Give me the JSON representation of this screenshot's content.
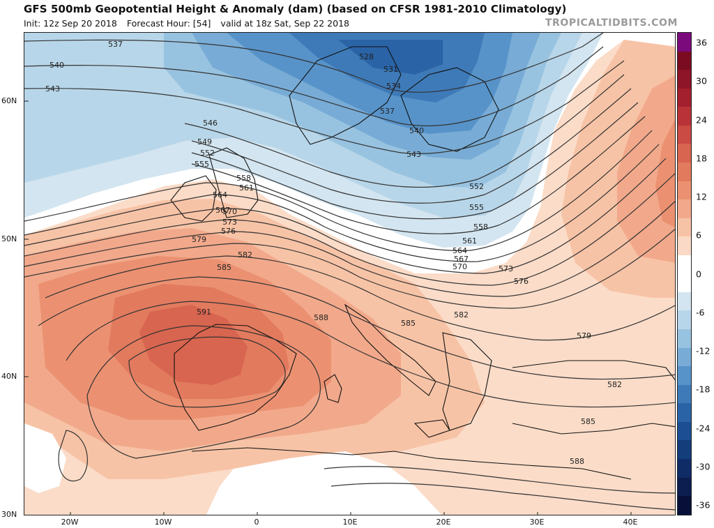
{
  "header": {
    "title": "GFS 500mb Geopotential Height & Anomaly (dam) (based on CFSR 1981-2010 Climatology)",
    "init": "Init: 12z Sep 20 2018",
    "forecast_hour": "Forecast Hour: [54]",
    "valid": "valid at 18z Sat, Sep 22 2018",
    "brand": "TROPICALTIDBITS.COM"
  },
  "axes": {
    "lat_labels": [
      "60N",
      "50N",
      "40N",
      "30N"
    ],
    "lon_labels": [
      "20W",
      "10W",
      "0",
      "10E",
      "20E",
      "30E",
      "40E"
    ]
  },
  "colorbar": {
    "labels": [
      "36",
      "30",
      "24",
      "18",
      "12",
      "6",
      "0",
      "-6",
      "-12",
      "-18",
      "-24",
      "-30",
      "-36"
    ],
    "colors": [
      "#7b0a7d",
      "#7a0b20",
      "#8e1428",
      "#a3202e",
      "#b93238",
      "#ca4a44",
      "#d8654f",
      "#e27a5e",
      "#eb9172",
      "#f2a98b",
      "#f7c3a6",
      "#fadac6",
      "#ffffff",
      "#ffffff",
      "#d3e5f0",
      "#b8d6e9",
      "#98c3e0",
      "#78acd6",
      "#5793c9",
      "#3e7ab8",
      "#2a63a6",
      "#1b4e92",
      "#143d7c",
      "#0f2c66",
      "#0c1d50",
      "#08103a"
    ]
  },
  "contour_labels": [
    "537",
    "540",
    "543",
    "546",
    "549",
    "552",
    "555",
    "558",
    "561",
    "564",
    "567",
    "570",
    "573",
    "576",
    "579",
    "582",
    "585",
    "588",
    "591",
    "528",
    "531",
    "534",
    "537",
    "540",
    "543",
    "552",
    "555",
    "558",
    "561",
    "564",
    "567",
    "570",
    "573",
    "576",
    "579",
    "582",
    "585",
    "582",
    "585",
    "588"
  ]
}
